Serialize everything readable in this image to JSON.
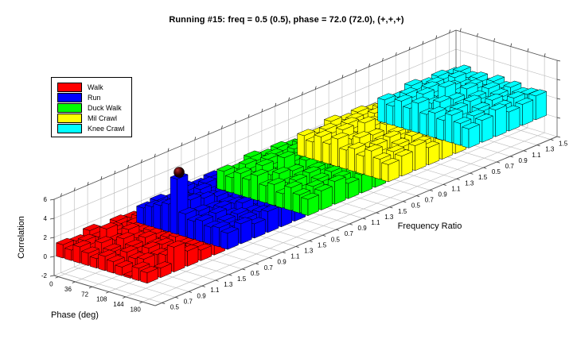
{
  "chart_data": {
    "type": "bar3d",
    "title": "Running #15: freq = 0.5 (0.5), phase = 72.0 (72.0), (+,+,+)",
    "xlabel": "Phase (deg)",
    "ylabel": "Frequency Ratio",
    "zlabel": "Correlation",
    "zlim": [
      -2,
      6
    ],
    "z_ticks": [
      -2,
      0,
      2,
      4,
      6
    ],
    "phase_ticks": [
      0,
      36,
      72,
      108,
      144,
      180
    ],
    "phase_values": [
      0,
      18,
      36,
      54,
      72,
      90,
      108,
      126,
      144,
      162,
      180
    ],
    "freq_ratio_values": [
      0.5,
      0.7,
      0.9,
      1.1,
      1.3,
      1.5
    ],
    "freq_tick_labels": [
      "0.5",
      "0.7",
      "0.9",
      "1.1",
      "1.3",
      "1.5"
    ],
    "grid": true,
    "series": [
      {
        "name": "Walk",
        "color": "#ff0000",
        "values": [
          [
            1.4,
            1.1,
            1.7,
            1.3,
            1.0,
            1.5,
            1.2,
            0.9,
            0.2,
            1.3,
            1.1
          ],
          [
            1.2,
            1.5,
            1.0,
            1.8,
            1.3,
            1.1,
            1.6,
            1.2,
            1.4,
            0.3,
            1.0
          ],
          [
            1.7,
            1.3,
            2.4,
            1.5,
            1.9,
            1.4,
            1.1,
            1.7,
            1.3,
            1.5,
            2.6
          ],
          [
            1.1,
            1.6,
            1.3,
            2.0,
            1.4,
            1.7,
            1.2,
            1.5,
            1.1,
            1.3,
            1.6
          ],
          [
            1.5,
            1.2,
            1.8,
            1.3,
            1.6,
            1.1,
            1.4,
            1.7,
            1.2,
            1.4,
            1.1
          ],
          [
            1.3,
            1.7,
            1.2,
            1.5,
            1.1,
            1.6,
            1.3,
            1.2,
            1.5,
            1.1,
            1.4
          ]
        ]
      },
      {
        "name": "Run",
        "color": "#0000ff",
        "values": [
          [
            1.7,
            2.1,
            2.5,
            2.9,
            5.8,
            2.4,
            1.9,
            2.2,
            1.8,
            2.0,
            1.7
          ],
          [
            1.9,
            1.6,
            2.2,
            2.7,
            3.0,
            2.1,
            1.7,
            2.4,
            1.9,
            1.6,
            2.1
          ],
          [
            1.5,
            2.0,
            1.8,
            2.3,
            2.6,
            1.9,
            2.2,
            1.7,
            2.0,
            1.8,
            1.5
          ],
          [
            2.1,
            1.7,
            2.4,
            1.9,
            2.2,
            1.8,
            2.0,
            2.3,
            1.7,
            1.9,
            2.2
          ],
          [
            1.8,
            2.2,
            1.6,
            2.1,
            1.7,
            2.3,
            1.9,
            1.6,
            2.1,
            1.7,
            2.0
          ],
          [
            2.0,
            1.7,
            2.3,
            1.8,
            2.1,
            1.7,
            2.2,
            1.9,
            1.7,
            2.0,
            1.8
          ]
        ]
      },
      {
        "name": "Duck Walk",
        "color": "#00ff00",
        "values": [
          [
            2.0,
            1.6,
            2.3,
            1.9,
            2.6,
            1.8,
            2.2,
            1.5,
            2.4,
            1.9,
            1.7
          ],
          [
            1.7,
            2.4,
            1.9,
            2.8,
            2.1,
            2.5,
            1.8,
            2.3,
            1.6,
            2.2,
            2.0
          ],
          [
            2.3,
            1.8,
            2.6,
            2.0,
            3.3,
            2.2,
            1.9,
            2.5,
            2.1,
            1.8,
            2.4
          ],
          [
            1.9,
            2.2,
            1.7,
            2.4,
            2.0,
            2.7,
            2.1,
            1.8,
            2.3,
            2.0,
            1.6
          ],
          [
            2.1,
            1.7,
            2.5,
            1.9,
            2.2,
            1.8,
            2.4,
            2.0,
            1.7,
            2.2,
            1.9
          ],
          [
            1.8,
            2.3,
            1.9,
            2.1,
            1.7,
            2.3,
            1.9,
            2.2,
            1.8,
            2.0,
            2.2
          ]
        ]
      },
      {
        "name": "Mil Crawl",
        "color": "#ffff00",
        "values": [
          [
            2.2,
            1.8,
            2.6,
            2.1,
            2.9,
            2.0,
            2.4,
            1.9,
            2.7,
            2.1,
            1.8
          ],
          [
            1.9,
            2.5,
            2.0,
            3.0,
            2.3,
            2.7,
            2.0,
            2.5,
            1.8,
            2.3,
            2.1
          ],
          [
            2.5,
            2.0,
            2.8,
            2.2,
            3.4,
            2.4,
            2.1,
            2.7,
            2.2,
            1.9,
            2.6
          ],
          [
            2.1,
            2.4,
            1.9,
            2.6,
            2.2,
            2.9,
            2.3,
            2.0,
            2.5,
            2.1,
            1.8
          ],
          [
            2.3,
            1.9,
            2.7,
            2.1,
            2.4,
            2.0,
            2.6,
            2.2,
            1.9,
            2.4,
            2.0
          ],
          [
            2.0,
            2.5,
            2.1,
            2.3,
            1.9,
            2.5,
            2.1,
            2.4,
            2.0,
            2.2,
            2.3
          ]
        ]
      },
      {
        "name": "Knee Crawl",
        "color": "#00ffff",
        "values": [
          [
            2.4,
            2.0,
            2.8,
            2.3,
            3.1,
            2.2,
            2.6,
            2.1,
            2.9,
            2.3,
            2.0
          ],
          [
            2.1,
            2.7,
            2.2,
            3.2,
            2.5,
            2.9,
            2.2,
            2.7,
            2.0,
            2.5,
            2.3
          ],
          [
            2.7,
            2.2,
            3.0,
            2.4,
            3.6,
            2.6,
            2.3,
            2.9,
            2.4,
            2.1,
            2.8
          ],
          [
            2.3,
            2.6,
            2.1,
            2.8,
            2.4,
            3.1,
            2.5,
            2.2,
            2.7,
            2.3,
            2.0
          ],
          [
            2.5,
            2.1,
            2.9,
            2.3,
            2.6,
            2.2,
            2.8,
            2.4,
            2.1,
            2.6,
            2.2
          ],
          [
            2.2,
            2.7,
            2.3,
            2.5,
            2.1,
            2.7,
            2.3,
            2.6,
            2.2,
            2.4,
            2.5
          ]
        ]
      }
    ],
    "peak_marker": {
      "series": "Run",
      "phase": 72,
      "freq_ratio": 0.5,
      "value": 5.8,
      "color": "#701010"
    }
  }
}
